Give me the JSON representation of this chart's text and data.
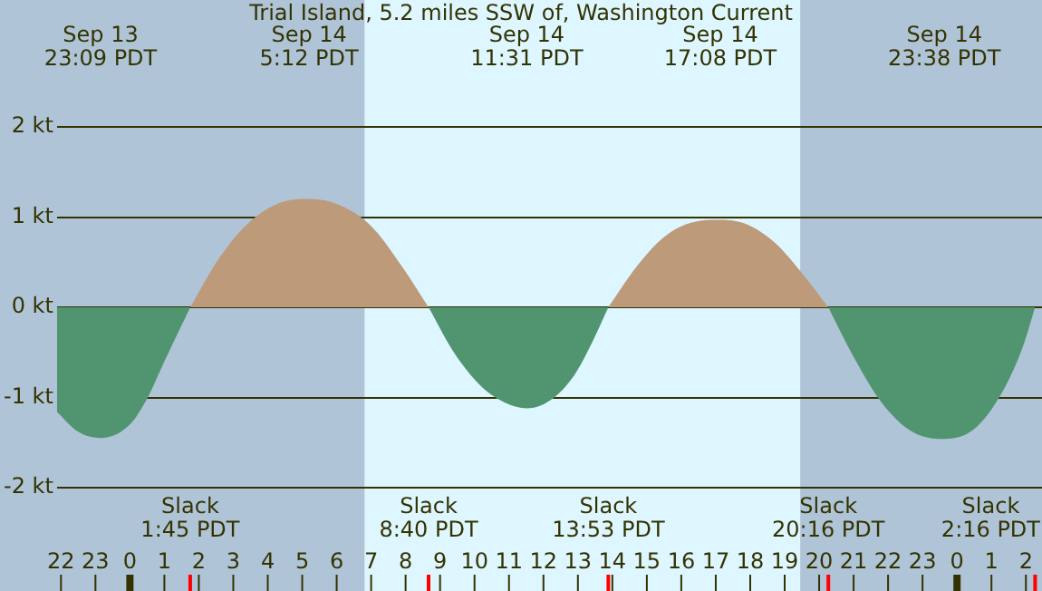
{
  "chart_data": {
    "type": "area",
    "title": "Trial Island, 5.2 miles SSW of, Washington Current",
    "xlim": [
      "--09-13T21:53",
      "--09-15T02:28"
    ],
    "ylim": [
      -2,
      2
    ],
    "xticks": [
      {
        "value": "--09-13T22:00",
        "label": "22"
      },
      {
        "value": "--09-13T23:00",
        "label": "23"
      },
      {
        "value": "--09-14T00:00",
        "label": "0"
      },
      {
        "value": "--09-14T01:00",
        "label": "1"
      },
      {
        "value": "--09-14T02:00",
        "label": "2"
      },
      {
        "value": "--09-14T03:00",
        "label": "3"
      },
      {
        "value": "--09-14T04:00",
        "label": "4"
      },
      {
        "value": "--09-14T05:00",
        "label": "5"
      },
      {
        "value": "--09-14T06:00",
        "label": "6"
      },
      {
        "value": "--09-14T07:00",
        "label": "7"
      },
      {
        "value": "--09-14T08:00",
        "label": "8"
      },
      {
        "value": "--09-14T09:00",
        "label": "9"
      },
      {
        "value": "--09-14T10:00",
        "label": "10"
      },
      {
        "value": "--09-14T11:00",
        "label": "11"
      },
      {
        "value": "--09-14T12:00",
        "label": "12"
      },
      {
        "value": "--09-14T13:00",
        "label": "13"
      },
      {
        "value": "--09-14T14:00",
        "label": "14"
      },
      {
        "value": "--09-14T15:00",
        "label": "15"
      },
      {
        "value": "--09-14T16:00",
        "label": "16"
      },
      {
        "value": "--09-14T17:00",
        "label": "17"
      },
      {
        "value": "--09-14T18:00",
        "label": "18"
      },
      {
        "value": "--09-14T19:00",
        "label": "19"
      },
      {
        "value": "--09-14T20:00",
        "label": "20"
      },
      {
        "value": "--09-14T21:00",
        "label": "21"
      },
      {
        "value": "--09-14T22:00",
        "label": "22"
      },
      {
        "value": "--09-14T23:00",
        "label": "23"
      },
      {
        "value": "--09-15T00:00",
        "label": "0"
      },
      {
        "value": "--09-15T01:00",
        "label": "1"
      },
      {
        "value": "--09-15T02:00",
        "label": "2"
      }
    ],
    "yticks": [
      {
        "value": -2,
        "label": "-2 kt"
      },
      {
        "value": -1,
        "label": "-1 kt"
      },
      {
        "value": 0,
        "label": "0 kt"
      },
      {
        "value": 1,
        "label": "1 kt"
      },
      {
        "value": 2,
        "label": "2 kt"
      }
    ],
    "grid": "y",
    "legend": false,
    "series": [
      {
        "color": "#519570",
        "x": [
          "--09-13T21:53",
          "--09-13T22:30",
          "--09-13T23:09",
          "--09-14T00:00",
          "--09-14T00:31",
          "--09-14T01:00",
          "--09-14T01:45",
          "--09-14T05:12",
          "--09-14T08:40",
          "--09-14T09:24",
          "--09-14T10:12",
          "--09-14T10:54",
          "--09-14T11:31",
          "--09-14T12:12",
          "--09-14T12:54",
          "--09-14T13:24",
          "--09-14T13:53",
          "--09-14T17:08",
          "--09-14T20:16",
          "--09-14T21:00",
          "--09-14T21:48",
          "--09-14T22:42",
          "--09-14T23:38",
          "--09-15T00:30",
          "--09-15T01:18",
          "--09-15T01:54",
          "--09-15T02:16"
        ],
        "values": [
          -1.16,
          -1.38,
          -1.45,
          -1.3,
          -1.0,
          -0.6,
          0,
          null,
          0,
          -0.5,
          -0.88,
          -1.06,
          -1.12,
          -1.03,
          -0.75,
          -0.4,
          0,
          null,
          0,
          -0.55,
          -1.05,
          -1.38,
          -1.46,
          -1.35,
          -0.95,
          -0.45,
          0
        ]
      },
      {
        "color": "#bc9a7a",
        "x": [
          "--09-14T01:45",
          "--09-14T02:36",
          "--09-14T03:24",
          "--09-14T04:18",
          "--09-14T05:12",
          "--09-14T06:06",
          "--09-14T07:00",
          "--09-14T07:54",
          "--09-14T08:40",
          "--09-14T11:31",
          "--09-14T13:53",
          "--09-14T14:42",
          "--09-14T15:30",
          "--09-14T16:18",
          "--09-14T17:08",
          "--09-14T17:54",
          "--09-14T18:42",
          "--09-14T19:30",
          "--09-14T20:16"
        ],
        "values": [
          0,
          0.55,
          0.92,
          1.15,
          1.2,
          1.13,
          0.9,
          0.45,
          0,
          null,
          0,
          0.45,
          0.78,
          0.94,
          0.97,
          0.92,
          0.72,
          0.38,
          0
        ]
      }
    ],
    "bands": [
      {
        "axis": "x",
        "from": "--09-13T21:53",
        "to": "--09-14T06:49",
        "color": "#b0c4d8"
      },
      {
        "axis": "x",
        "from": "--09-14T06:49",
        "to": "--09-14T19:27",
        "color": "#ddf6ff"
      },
      {
        "axis": "x",
        "from": "--09-14T19:27",
        "to": "--09-15T02:28",
        "color": "#b0c4d8"
      }
    ],
    "annotations": [
      "Sep 13\n23:09 PDT",
      "Sep 14\n5:12 PDT",
      "Sep 14\n11:31 PDT",
      "Sep 14\n17:08 PDT",
      "Sep 14\n23:38 PDT",
      "Slack\n1:45 PDT",
      "Slack\n8:40 PDT",
      "Slack\n13:53 PDT",
      "Slack\n20:16 PDT",
      "Slack\n2:16 PDT"
    ]
  }
}
